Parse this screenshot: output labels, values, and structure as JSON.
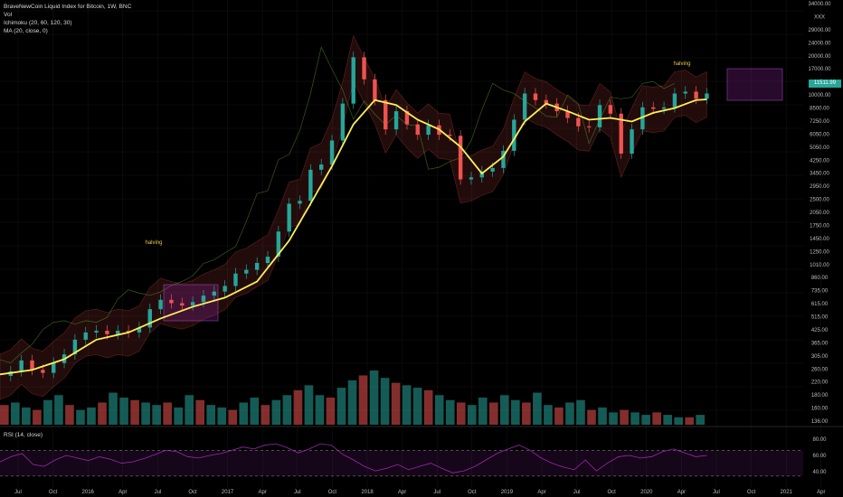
{
  "legend": {
    "title": "BraveNewCoin Liquid Index for Bitcoin, 1W, BNC",
    "vol": "Vol",
    "ichimoku": "Ichimoku (20, 60, 120, 30)",
    "ma": "MA (20, close, 0)"
  },
  "rsi_label": "RSI (14, close)",
  "current_price": "11511.99",
  "colors": {
    "up": "#26a69a",
    "down": "#ef5350",
    "ma": "#ffee58",
    "rsi": "#9c27b0",
    "box": "#9c27b0"
  },
  "chart_data": {
    "type": "line",
    "price_scale": "log",
    "x_ticks": [
      "Jul",
      "Oct",
      "2016",
      "Apr",
      "Jul",
      "Oct",
      "2017",
      "Apr",
      "Jul",
      "Oct",
      "2018",
      "Apr",
      "Jul",
      "Oct",
      "2019",
      "Apr",
      "Jul",
      "Oct",
      "2020",
      "Apr",
      "Jul",
      "Oct",
      "2021",
      "Apr"
    ],
    "y_ticks": [
      "34000.00",
      "XXX",
      "29000.00",
      "24000.00",
      "20000.00",
      "17000.00",
      "14500.00",
      "10000.00",
      "8500.00",
      "7250.00",
      "6050.00",
      "5050.00",
      "4250.00",
      "3450.00",
      "2950.00",
      "2500.00",
      "2050.00",
      "1750.00",
      "1450.00",
      "1250.00",
      "1010.00",
      "860.00",
      "735.00",
      "615.00",
      "515.00",
      "425.00",
      "365.00",
      "305.00",
      "260.00",
      "220.00",
      "180.00",
      "160.00",
      "136.00"
    ],
    "rsi_ticks": [
      "80.00",
      "60.00",
      "40.00"
    ],
    "annotations": [
      "halving",
      "halving"
    ],
    "price_series": [
      {
        "x": 0,
        "y": 230
      },
      {
        "x": 2,
        "y": 245
      },
      {
        "x": 4,
        "y": 285
      },
      {
        "x": 6,
        "y": 250
      },
      {
        "x": 8,
        "y": 240
      },
      {
        "x": 10,
        "y": 275
      },
      {
        "x": 12,
        "y": 310
      },
      {
        "x": 14,
        "y": 380
      },
      {
        "x": 16,
        "y": 420
      },
      {
        "x": 18,
        "y": 430
      },
      {
        "x": 20,
        "y": 410
      },
      {
        "x": 22,
        "y": 430
      },
      {
        "x": 24,
        "y": 420
      },
      {
        "x": 26,
        "y": 450
      },
      {
        "x": 28,
        "y": 580
      },
      {
        "x": 30,
        "y": 660
      },
      {
        "x": 32,
        "y": 630
      },
      {
        "x": 34,
        "y": 610
      },
      {
        "x": 36,
        "y": 640
      },
      {
        "x": 38,
        "y": 700
      },
      {
        "x": 40,
        "y": 740
      },
      {
        "x": 42,
        "y": 800
      },
      {
        "x": 44,
        "y": 950
      },
      {
        "x": 46,
        "y": 1000
      },
      {
        "x": 48,
        "y": 1100
      },
      {
        "x": 50,
        "y": 1200
      },
      {
        "x": 52,
        "y": 1700
      },
      {
        "x": 54,
        "y": 2500
      },
      {
        "x": 56,
        "y": 2600
      },
      {
        "x": 58,
        "y": 4000
      },
      {
        "x": 60,
        "y": 4300
      },
      {
        "x": 62,
        "y": 6000
      },
      {
        "x": 64,
        "y": 10000
      },
      {
        "x": 66,
        "y": 19000
      },
      {
        "x": 68,
        "y": 14000
      },
      {
        "x": 70,
        "y": 10500
      },
      {
        "x": 72,
        "y": 7000
      },
      {
        "x": 74,
        "y": 9000
      },
      {
        "x": 76,
        "y": 7500
      },
      {
        "x": 78,
        "y": 6500
      },
      {
        "x": 80,
        "y": 7400
      },
      {
        "x": 82,
        "y": 6500
      },
      {
        "x": 84,
        "y": 6400
      },
      {
        "x": 86,
        "y": 3500
      },
      {
        "x": 88,
        "y": 3600
      },
      {
        "x": 90,
        "y": 3900
      },
      {
        "x": 92,
        "y": 4100
      },
      {
        "x": 94,
        "y": 5200
      },
      {
        "x": 96,
        "y": 8000
      },
      {
        "x": 98,
        "y": 11500
      },
      {
        "x": 100,
        "y": 10500
      },
      {
        "x": 102,
        "y": 10000
      },
      {
        "x": 104,
        "y": 9000
      },
      {
        "x": 106,
        "y": 8200
      },
      {
        "x": 108,
        "y": 7300
      },
      {
        "x": 110,
        "y": 7200
      },
      {
        "x": 112,
        "y": 9800
      },
      {
        "x": 114,
        "y": 8700
      },
      {
        "x": 116,
        "y": 5000
      },
      {
        "x": 118,
        "y": 7000
      },
      {
        "x": 120,
        "y": 9500
      },
      {
        "x": 122,
        "y": 9300
      },
      {
        "x": 124,
        "y": 9500
      },
      {
        "x": 126,
        "y": 11500
      },
      {
        "x": 128,
        "y": 11800
      },
      {
        "x": 130,
        "y": 10700
      },
      {
        "x": 132,
        "y": 11500
      }
    ],
    "ma_series": [
      {
        "x": 0,
        "y": 235
      },
      {
        "x": 6,
        "y": 250
      },
      {
        "x": 12,
        "y": 290
      },
      {
        "x": 18,
        "y": 380
      },
      {
        "x": 24,
        "y": 420
      },
      {
        "x": 30,
        "y": 510
      },
      {
        "x": 36,
        "y": 600
      },
      {
        "x": 42,
        "y": 680
      },
      {
        "x": 48,
        "y": 850
      },
      {
        "x": 54,
        "y": 1500
      },
      {
        "x": 58,
        "y": 2500
      },
      {
        "x": 62,
        "y": 4200
      },
      {
        "x": 66,
        "y": 7500
      },
      {
        "x": 70,
        "y": 10500
      },
      {
        "x": 74,
        "y": 9800
      },
      {
        "x": 78,
        "y": 8000
      },
      {
        "x": 82,
        "y": 7000
      },
      {
        "x": 86,
        "y": 5500
      },
      {
        "x": 90,
        "y": 3800
      },
      {
        "x": 94,
        "y": 4800
      },
      {
        "x": 98,
        "y": 7800
      },
      {
        "x": 102,
        "y": 10000
      },
      {
        "x": 106,
        "y": 9000
      },
      {
        "x": 110,
        "y": 8000
      },
      {
        "x": 114,
        "y": 8200
      },
      {
        "x": 118,
        "y": 7800
      },
      {
        "x": 122,
        "y": 8800
      },
      {
        "x": 126,
        "y": 9400
      },
      {
        "x": 130,
        "y": 10500
      },
      {
        "x": 132,
        "y": 10600
      }
    ],
    "volume_series": [
      8,
      9,
      7,
      6,
      10,
      12,
      8,
      6,
      7,
      9,
      13,
      11,
      10,
      9,
      8,
      9,
      7,
      12,
      10,
      8,
      7,
      6,
      9,
      11,
      8,
      10,
      12,
      14,
      16,
      12,
      11,
      15,
      18,
      20,
      22,
      19,
      17,
      16,
      15,
      14,
      12,
      10,
      9,
      8,
      11,
      9,
      12,
      10,
      9,
      13,
      8,
      7,
      9,
      10,
      6,
      7,
      5,
      6,
      5,
      4,
      5,
      4,
      3,
      3,
      4
    ],
    "rsi_series": [
      52,
      60,
      65,
      48,
      45,
      55,
      62,
      58,
      54,
      60,
      56,
      50,
      52,
      57,
      63,
      70,
      68,
      60,
      58,
      62,
      65,
      70,
      75,
      72,
      78,
      80,
      74,
      66,
      72,
      80,
      78,
      64,
      55,
      45,
      38,
      42,
      48,
      40,
      45,
      50,
      42,
      35,
      38,
      45,
      55,
      65,
      72,
      78,
      70,
      58,
      50,
      44,
      40,
      55,
      38,
      50,
      60,
      62,
      58,
      60,
      68,
      72,
      66,
      60,
      62
    ]
  }
}
